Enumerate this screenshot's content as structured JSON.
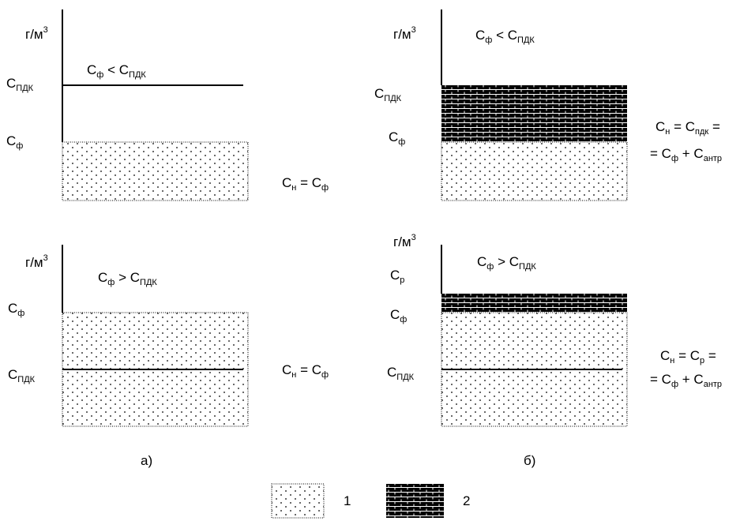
{
  "unit": {
    "base": "г/м",
    "exp": "3"
  },
  "panels": [
    {
      "id": "a-top",
      "unit_shown": true,
      "ineq": {
        "l": "C",
        "ls": "ф",
        "op": "<",
        "r": "C",
        "rs": "ПДК"
      },
      "left": [
        {
          "t": "C",
          "s": "ПДК"
        },
        {
          "t": "C",
          "s": "ф"
        }
      ],
      "formula1": {
        "l": "C",
        "ls": "н",
        "eq": "=",
        "r": "C",
        "rs": "ф"
      }
    },
    {
      "id": "a-bottom",
      "unit_shown": true,
      "ineq": {
        "l": "C",
        "ls": "ф",
        "op": ">",
        "r": "C",
        "rs": "ПДК"
      },
      "left": [
        {
          "t": "C",
          "s": "ф"
        },
        {
          "t": "C",
          "s": "ПДК"
        }
      ],
      "formula1": {
        "l": "C",
        "ls": "н",
        "eq": "=",
        "r": "C",
        "rs": "ф"
      }
    },
    {
      "id": "b-top",
      "unit_shown": true,
      "ineq": {
        "l": "C",
        "ls": "ф",
        "op": "<",
        "r": "C",
        "rs": "ПДК"
      },
      "left": [
        {
          "t": "C",
          "s": "ПДК"
        },
        {
          "t": "C",
          "s": "ф"
        }
      ],
      "formula1": {
        "l": "C",
        "ls": "н",
        "eq": "=",
        "r": "C",
        "rs": "пдк",
        "tail": "="
      },
      "formula2": {
        "lead": "=",
        "l": "C",
        "ls": "ф",
        "op": "+",
        "r": "C",
        "rs": "антр"
      }
    },
    {
      "id": "b-bottom",
      "unit_shown": true,
      "ineq": {
        "l": "C",
        "ls": "ф",
        "op": ">",
        "r": "C",
        "rs": "ПДК"
      },
      "left": [
        {
          "t": "C",
          "s": "р"
        },
        {
          "t": "C",
          "s": "ф"
        },
        {
          "t": "C",
          "s": "ПДК"
        }
      ],
      "formula1": {
        "l": "C",
        "ls": "н",
        "eq": "=",
        "r": "C",
        "rs": "р",
        "tail": "="
      },
      "formula2": {
        "lead": "=",
        "l": "C",
        "ls": "ф",
        "op": "+",
        "r": "C",
        "rs": "антр"
      }
    }
  ],
  "captions": {
    "a": "а)",
    "b": "б)"
  },
  "legend": [
    {
      "num": "1",
      "pattern": "dots"
    },
    {
      "num": "2",
      "pattern": "bricks"
    }
  ]
}
